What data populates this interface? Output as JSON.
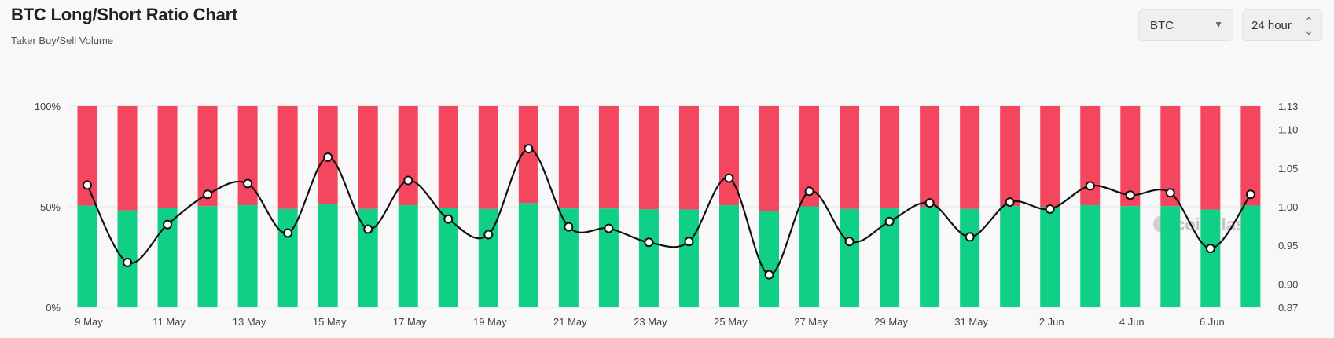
{
  "header": {
    "title": "BTC Long/Short Ratio Chart",
    "subtitle": "Taker Buy/Sell Volume"
  },
  "controls": {
    "asset": "BTC",
    "range": "24 hour"
  },
  "watermark": "coinglass",
  "colors": {
    "long": "#10cf86",
    "short": "#f4465e",
    "ratio_line": "#111111"
  },
  "chart_data": {
    "type": "bar",
    "stacked": true,
    "percent": true,
    "dates": [
      "9 May",
      "10 May",
      "11 May",
      "12 May",
      "13 May",
      "14 May",
      "15 May",
      "16 May",
      "17 May",
      "18 May",
      "19 May",
      "20 May",
      "21 May",
      "22 May",
      "23 May",
      "24 May",
      "25 May",
      "26 May",
      "27 May",
      "28 May",
      "29 May",
      "30 May",
      "31 May",
      "1 Jun",
      "2 Jun",
      "3 Jun",
      "4 Jun",
      "5 Jun",
      "6 Jun",
      "7 Jun"
    ],
    "x_tick_labels": [
      "9 May",
      "11 May",
      "13 May",
      "15 May",
      "17 May",
      "19 May",
      "21 May",
      "23 May",
      "25 May",
      "27 May",
      "29 May",
      "31 May",
      "2 Jun",
      "4 Jun",
      "6 Jun"
    ],
    "series": [
      {
        "name": "Long",
        "values": [
          50.6,
          48.2,
          49.4,
          50.3,
          50.8,
          48.9,
          51.4,
          48.9,
          50.8,
          49.4,
          48.9,
          51.8,
          49.1,
          49.1,
          48.7,
          48.6,
          50.8,
          47.9,
          50.2,
          48.9,
          49.4,
          50.0,
          48.9,
          50.3,
          50.0,
          50.8,
          50.3,
          50.3,
          48.6,
          50.6
        ]
      },
      {
        "name": "Short",
        "values": [
          49.4,
          51.8,
          50.6,
          49.7,
          49.2,
          51.1,
          48.6,
          51.1,
          49.2,
          50.6,
          51.1,
          48.2,
          50.9,
          50.9,
          51.3,
          51.4,
          49.2,
          52.1,
          49.8,
          51.1,
          50.6,
          50.0,
          51.1,
          49.7,
          50.0,
          49.2,
          49.7,
          49.7,
          51.4,
          49.4
        ]
      },
      {
        "name": "Long/Short Ratio",
        "axis": "right",
        "values": [
          1.028,
          0.928,
          0.977,
          1.016,
          1.03,
          0.966,
          1.064,
          0.971,
          1.034,
          0.984,
          0.964,
          1.075,
          0.974,
          0.972,
          0.954,
          0.955,
          1.037,
          0.912,
          1.02,
          0.955,
          0.981,
          1.005,
          0.961,
          1.006,
          0.997,
          1.027,
          1.015,
          1.018,
          0.946,
          1.016
        ]
      }
    ],
    "y_left": {
      "ticks": [
        "0%",
        "50%",
        "100%"
      ],
      "range": [
        0,
        100
      ]
    },
    "y_right": {
      "ticks": [
        "0.87",
        "0.90",
        "0.95",
        "1.00",
        "1.05",
        "1.10",
        "1.13"
      ],
      "range": [
        0.87,
        1.13
      ]
    },
    "grid": true
  }
}
